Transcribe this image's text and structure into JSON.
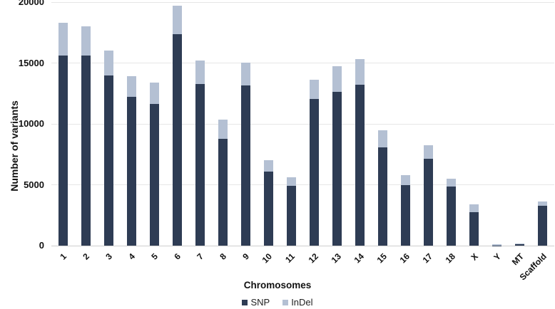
{
  "figure": {
    "background": "#ffffff"
  },
  "chart_data": {
    "type": "bar",
    "stacked": true,
    "title": "",
    "xlabel": "Chromosomes",
    "ylabel": "Number of variants",
    "ylim": [
      0,
      20000
    ],
    "ytick_step": 5000,
    "ytick_labels": [
      "0",
      "5000",
      "10000",
      "15000",
      "20000"
    ],
    "grid": true,
    "legend_position": "bottom",
    "categories": [
      "1",
      "2",
      "3",
      "4",
      "5",
      "6",
      "7",
      "8",
      "9",
      "10",
      "11",
      "12",
      "13",
      "14",
      "15",
      "16",
      "17",
      "18",
      "X",
      "Y",
      "MT",
      "Scaffold"
    ],
    "series": [
      {
        "name": "SNP",
        "color": "#2e3c54",
        "values": [
          15600,
          15600,
          14000,
          12250,
          11650,
          17350,
          13300,
          8800,
          13150,
          6100,
          4900,
          12050,
          12650,
          13200,
          8100,
          5000,
          7150,
          4850,
          2750,
          30,
          150,
          3250
        ]
      },
      {
        "name": "InDel",
        "color": "#b4c0d3",
        "values": [
          2700,
          2400,
          2000,
          1650,
          1750,
          2350,
          1900,
          1550,
          1900,
          900,
          700,
          1600,
          2100,
          2100,
          1350,
          800,
          1100,
          650,
          650,
          60,
          30,
          400
        ]
      }
    ]
  },
  "colors": {
    "gridline": "#e6e6e6",
    "axis_line": "#cfcfcf",
    "text": "#111111"
  }
}
